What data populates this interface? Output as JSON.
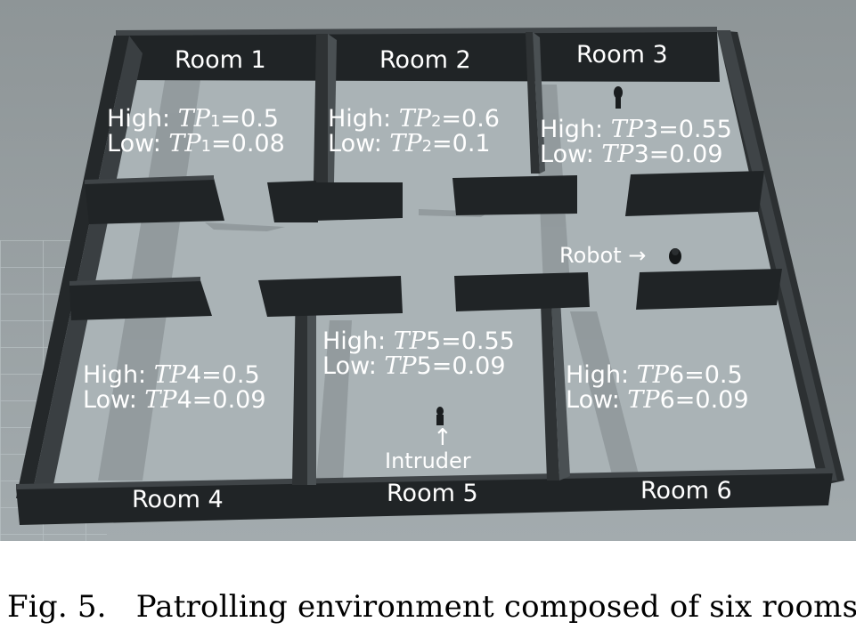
{
  "scene": {
    "rooms": [
      {
        "label": "Room 1",
        "high_label": "High:",
        "low_label": "Low:",
        "tp_name": "TP",
        "tp_index": "1",
        "high_value": "=0.5",
        "low_value": "=0.08"
      },
      {
        "label": "Room 2",
        "high_label": "High:",
        "low_label": "Low:",
        "tp_name": "TP",
        "tp_index": "2",
        "high_value": "=0.6",
        "low_value": "=0.1"
      },
      {
        "label": "Room 3",
        "high_label": "High:",
        "low_label": "Low:",
        "tp_name": "TP",
        "tp_index": "3",
        "high_value": "=0.55",
        "low_value": "=0.09"
      },
      {
        "label": "Room 4",
        "high_label": "High:",
        "low_label": "Low:",
        "tp_name": "TP",
        "tp_index": "4",
        "high_value": "=0.5",
        "low_value": "=0.09"
      },
      {
        "label": "Room 5",
        "high_label": "High:",
        "low_label": "Low:",
        "tp_name": "TP",
        "tp_index": "5",
        "high_value": "=0.55",
        "low_value": "=0.09"
      },
      {
        "label": "Room 6",
        "high_label": "High:",
        "low_label": "Low:",
        "tp_name": "TP",
        "tp_index": "6",
        "high_value": "=0.5",
        "low_value": "=0.09"
      }
    ],
    "robot_label": "Robot",
    "robot_arrow": "→",
    "intruder_label": "Intruder",
    "intruder_arrow": "↑",
    "colors": {
      "sky": "#9aa1a3",
      "floor": "#a9b3b6",
      "grid_line": "#bcc5c8",
      "wall_top": "#3f4447",
      "wall_face": "#202426",
      "shadow": "#7d8588",
      "text": "#ffffff"
    }
  },
  "caption": "Fig. 5.   Patrolling environment composed of six rooms"
}
